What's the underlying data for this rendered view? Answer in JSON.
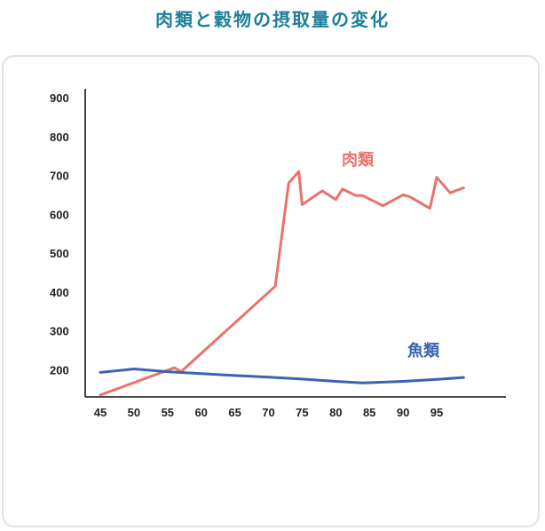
{
  "page": {
    "title": "肉類と穀物の摂取量の変化"
  },
  "chart_data": {
    "type": "line",
    "title": "肉類と穀物の摂取量の変化",
    "xlabel": "",
    "ylabel": "",
    "x_ticks": [
      "45",
      "50",
      "55",
      "60",
      "65",
      "70",
      "75",
      "80",
      "85",
      "90",
      "95"
    ],
    "y_ticks": [
      "200",
      "300",
      "400",
      "500",
      "600",
      "700",
      "800",
      "900"
    ],
    "xlim": [
      45,
      99.5
    ],
    "ylim": [
      130,
      900
    ],
    "grid": false,
    "series": [
      {
        "name": "肉類",
        "color": "#e8736a",
        "x": [
          45,
          56,
          57,
          71,
          73,
          74.5,
          75,
          78,
          80,
          81,
          83,
          84,
          87,
          90,
          91,
          94,
          95,
          97,
          99
        ],
        "y": [
          135,
          205,
          195,
          415,
          680,
          710,
          625,
          660,
          638,
          665,
          648,
          648,
          622,
          650,
          645,
          615,
          695,
          655,
          668
        ]
      },
      {
        "name": "魚類",
        "color": "#3a64b0",
        "x": [
          45,
          50,
          55,
          60,
          65,
          70,
          75,
          80,
          84,
          90,
          95,
          99
        ],
        "y": [
          193,
          202,
          195,
          190,
          185,
          181,
          176,
          170,
          166,
          170,
          175,
          180
        ]
      }
    ]
  }
}
